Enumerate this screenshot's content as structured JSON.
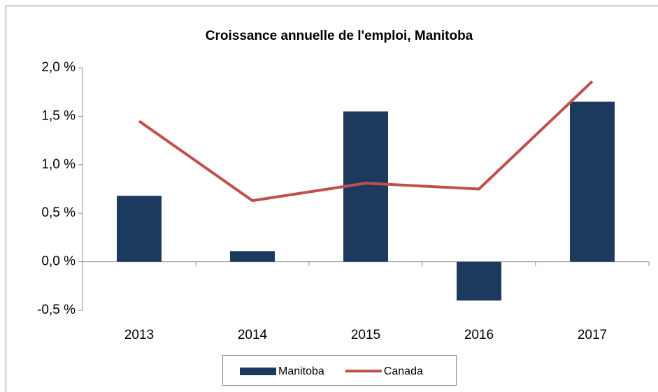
{
  "chart_data": {
    "type": "bar",
    "title": "Croissance annuelle de l'emploi, Manitoba",
    "categories": [
      "2013",
      "2014",
      "2015",
      "2016",
      "2017"
    ],
    "series": [
      {
        "name": "Manitoba",
        "type": "bar",
        "color": "#1b3a5e",
        "values": [
          0.68,
          0.11,
          1.55,
          -0.4,
          1.65
        ]
      },
      {
        "name": "Canada",
        "type": "line",
        "color": "#c0504d",
        "values": [
          1.45,
          0.63,
          0.81,
          0.75,
          1.86
        ]
      }
    ],
    "ylim": [
      -0.5,
      2.0
    ],
    "yticks": [
      {
        "value": -0.5,
        "label": "-0,5 %"
      },
      {
        "value": 0.0,
        "label": "0,0 %"
      },
      {
        "value": 0.5,
        "label": "0,5 %"
      },
      {
        "value": 1.0,
        "label": "1,0 %"
      },
      {
        "value": 1.5,
        "label": "1,5 %"
      },
      {
        "value": 2.0,
        "label": "2,0 %"
      }
    ],
    "legend": "bottom"
  }
}
